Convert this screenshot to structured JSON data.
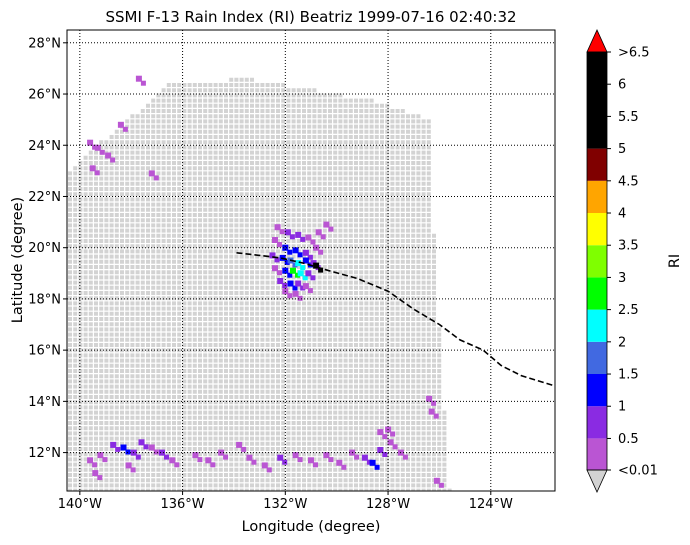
{
  "chart_data": {
    "type": "scatter",
    "title": "SSMI F-13 Rain Index (RI) Beatriz 1999-07-16 02:40:32",
    "xlabel": "Longitude (degree)",
    "ylabel": "Latitude (degree)",
    "xlim": [
      -140.5,
      -121.5
    ],
    "ylim": [
      10.5,
      28.5
    ],
    "x_ticks": [
      -140,
      -136,
      -132,
      -128,
      -124
    ],
    "x_tick_labels": [
      "140°W",
      "136°W",
      "132°W",
      "128°W",
      "124°W"
    ],
    "y_ticks": [
      12,
      14,
      16,
      18,
      20,
      22,
      24,
      26,
      28
    ],
    "y_tick_labels": [
      "12°N",
      "14°N",
      "16°N",
      "18°N",
      "20°N",
      "22°N",
      "24°N",
      "26°N",
      "28°N"
    ],
    "grid": true,
    "swath": {
      "description_color": "#d3d3d3",
      "corners": [
        [
          -140.5,
          23.0
        ],
        [
          -136.5,
          26.4
        ],
        [
          -133.5,
          26.6
        ],
        [
          -128.8,
          25.8
        ],
        [
          -126.3,
          25.0
        ],
        [
          -126.2,
          20.0
        ],
        [
          -125.6,
          10.5
        ],
        [
          -140.5,
          10.5
        ]
      ]
    },
    "rain_points": [
      {
        "lon": -139.6,
        "lat": 24.1,
        "ri": 0.3
      },
      {
        "lon": -139.3,
        "lat": 23.9,
        "ri": 0.3
      },
      {
        "lon": -138.9,
        "lat": 23.6,
        "ri": 0.3
      },
      {
        "lon": -139.5,
        "lat": 23.1,
        "ri": 0.3
      },
      {
        "lon": -138.4,
        "lat": 24.8,
        "ri": 0.3
      },
      {
        "lon": -137.7,
        "lat": 26.6,
        "ri": 0.3
      },
      {
        "lon": -137.2,
        "lat": 22.9,
        "ri": 0.3
      },
      {
        "lon": -132.3,
        "lat": 20.8,
        "ri": 0.3
      },
      {
        "lon": -131.9,
        "lat": 20.6,
        "ri": 0.6
      },
      {
        "lon": -131.5,
        "lat": 20.5,
        "ri": 0.6
      },
      {
        "lon": -131.1,
        "lat": 20.4,
        "ri": 0.3
      },
      {
        "lon": -130.7,
        "lat": 20.6,
        "ri": 0.3
      },
      {
        "lon": -130.4,
        "lat": 20.9,
        "ri": 0.3
      },
      {
        "lon": -132.4,
        "lat": 20.3,
        "ri": 0.3
      },
      {
        "lon": -132.0,
        "lat": 20.0,
        "ri": 1.2
      },
      {
        "lon": -131.6,
        "lat": 19.9,
        "ri": 1.2
      },
      {
        "lon": -131.2,
        "lat": 19.8,
        "ri": 0.6
      },
      {
        "lon": -130.8,
        "lat": 20.0,
        "ri": 0.3
      },
      {
        "lon": -132.5,
        "lat": 19.7,
        "ri": 0.6
      },
      {
        "lon": -132.1,
        "lat": 19.6,
        "ri": 1.2
      },
      {
        "lon": -131.8,
        "lat": 19.5,
        "ri": 1.7
      },
      {
        "lon": -131.5,
        "lat": 19.4,
        "ri": 2.2
      },
      {
        "lon": -131.2,
        "lat": 19.5,
        "ri": 1.2
      },
      {
        "lon": -130.9,
        "lat": 19.4,
        "ri": 0.6
      },
      {
        "lon": -132.4,
        "lat": 19.2,
        "ri": 0.3
      },
      {
        "lon": -132.0,
        "lat": 19.1,
        "ri": 1.2
      },
      {
        "lon": -131.7,
        "lat": 19.1,
        "ri": 2.8
      },
      {
        "lon": -131.4,
        "lat": 19.0,
        "ri": 2.2
      },
      {
        "lon": -131.1,
        "lat": 19.0,
        "ri": 0.6
      },
      {
        "lon": -130.8,
        "lat": 19.3,
        "ri": 5.0
      },
      {
        "lon": -132.2,
        "lat": 18.7,
        "ri": 0.6
      },
      {
        "lon": -131.8,
        "lat": 18.6,
        "ri": 1.2
      },
      {
        "lon": -131.5,
        "lat": 18.6,
        "ri": 0.6
      },
      {
        "lon": -131.2,
        "lat": 18.5,
        "ri": 0.3
      },
      {
        "lon": -132.0,
        "lat": 18.3,
        "ri": 0.3
      },
      {
        "lon": -131.6,
        "lat": 18.2,
        "ri": 0.3
      },
      {
        "lon": -139.2,
        "lat": 11.9,
        "ri": 0.3
      },
      {
        "lon": -138.7,
        "lat": 12.3,
        "ri": 0.6
      },
      {
        "lon": -138.3,
        "lat": 12.2,
        "ri": 1.2
      },
      {
        "lon": -137.9,
        "lat": 12.0,
        "ri": 0.6
      },
      {
        "lon": -137.6,
        "lat": 12.4,
        "ri": 0.6
      },
      {
        "lon": -137.2,
        "lat": 12.2,
        "ri": 0.3
      },
      {
        "lon": -136.8,
        "lat": 12.0,
        "ri": 0.6
      },
      {
        "lon": -136.4,
        "lat": 11.7,
        "ri": 0.3
      },
      {
        "lon": -138.1,
        "lat": 11.5,
        "ri": 0.3
      },
      {
        "lon": -139.6,
        "lat": 11.7,
        "ri": 0.3
      },
      {
        "lon": -139.4,
        "lat": 11.2,
        "ri": 0.3
      },
      {
        "lon": -135.5,
        "lat": 11.9,
        "ri": 0.3
      },
      {
        "lon": -135.0,
        "lat": 11.7,
        "ri": 0.3
      },
      {
        "lon": -134.5,
        "lat": 12.0,
        "ri": 0.3
      },
      {
        "lon": -133.8,
        "lat": 12.3,
        "ri": 0.3
      },
      {
        "lon": -133.4,
        "lat": 11.8,
        "ri": 0.3
      },
      {
        "lon": -132.8,
        "lat": 11.5,
        "ri": 0.3
      },
      {
        "lon": -132.2,
        "lat": 11.8,
        "ri": 0.6
      },
      {
        "lon": -131.6,
        "lat": 11.9,
        "ri": 0.3
      },
      {
        "lon": -131.0,
        "lat": 11.7,
        "ri": 0.3
      },
      {
        "lon": -130.4,
        "lat": 11.9,
        "ri": 0.3
      },
      {
        "lon": -129.9,
        "lat": 11.6,
        "ri": 0.3
      },
      {
        "lon": -129.4,
        "lat": 12.0,
        "ri": 0.3
      },
      {
        "lon": -128.9,
        "lat": 11.8,
        "ri": 0.6
      },
      {
        "lon": -128.6,
        "lat": 11.6,
        "ri": 1.2
      },
      {
        "lon": -128.3,
        "lat": 12.1,
        "ri": 0.6
      },
      {
        "lon": -127.9,
        "lat": 12.4,
        "ri": 0.3
      },
      {
        "lon": -128.3,
        "lat": 12.8,
        "ri": 0.3
      },
      {
        "lon": -128.0,
        "lat": 12.9,
        "ri": 0.3
      },
      {
        "lon": -127.5,
        "lat": 12.0,
        "ri": 0.3
      },
      {
        "lon": -126.4,
        "lat": 14.1,
        "ri": 0.3
      },
      {
        "lon": -126.3,
        "lat": 13.6,
        "ri": 0.3
      },
      {
        "lon": -126.1,
        "lat": 10.9,
        "ri": 0.3
      }
    ],
    "track": [
      [
        -133.9,
        19.8
      ],
      [
        -133.0,
        19.7
      ],
      [
        -132.2,
        19.6
      ],
      [
        -131.3,
        19.4
      ],
      [
        -130.3,
        19.1
      ],
      [
        -129.2,
        18.8
      ],
      [
        -128.0,
        18.3
      ],
      [
        -127.0,
        17.6
      ],
      [
        -126.0,
        17.0
      ],
      [
        -125.2,
        16.4
      ],
      [
        -124.3,
        16.0
      ],
      [
        -123.6,
        15.4
      ],
      [
        -122.8,
        15.0
      ],
      [
        -121.5,
        14.6
      ]
    ],
    "colorbar": {
      "label": "RI",
      "under_label": "<0.01",
      "over_label": ">6.5",
      "ticks": [
        "0.5",
        "1",
        "1.5",
        "2",
        "2.5",
        "3",
        "3.5",
        "4",
        "4.5",
        "5",
        "5.5",
        "6"
      ],
      "bins": [
        {
          "from": 0.01,
          "to": 0.5,
          "color": "#ba55d3"
        },
        {
          "from": 0.5,
          "to": 1.0,
          "color": "#8a2be2"
        },
        {
          "from": 1.0,
          "to": 1.5,
          "color": "#0000ff"
        },
        {
          "from": 1.5,
          "to": 2.0,
          "color": "#4169e1"
        },
        {
          "from": 2.0,
          "to": 2.5,
          "color": "#00ffff"
        },
        {
          "from": 2.5,
          "to": 3.0,
          "color": "#00ff00"
        },
        {
          "from": 3.0,
          "to": 3.5,
          "color": "#7fff00"
        },
        {
          "from": 3.5,
          "to": 4.0,
          "color": "#ffff00"
        },
        {
          "from": 4.0,
          "to": 4.5,
          "color": "#ffa500"
        },
        {
          "from": 4.5,
          "to": 5.0,
          "color": "#800000"
        },
        {
          "from": 5.0,
          "to": 6.5,
          "color": "#000000"
        }
      ],
      "under_color": "#d3d3d3",
      "over_color": "#ff0000"
    }
  }
}
